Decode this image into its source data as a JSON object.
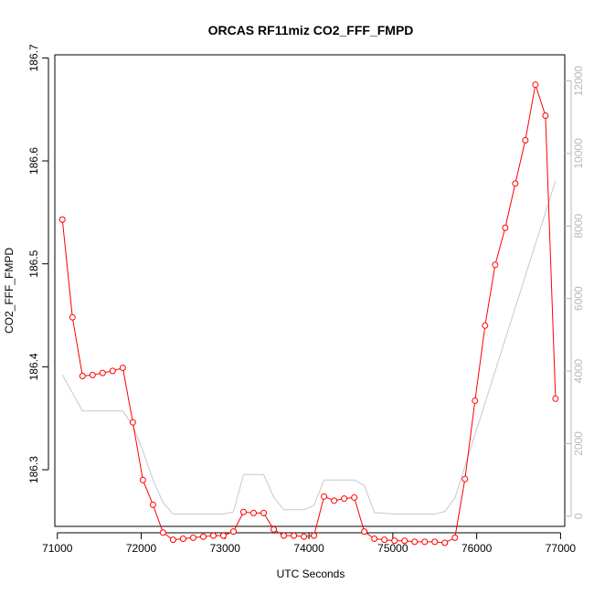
{
  "chart_data": {
    "type": "line",
    "title": "ORCAS RF11miz CO2_FFF_FMPD",
    "xlabel": "UTC Seconds",
    "ylabel": "CO2_FFF_FMPD",
    "xlim": [
      70970,
      77050
    ],
    "ylim": [
      186.245,
      186.703
    ],
    "y2lim": [
      -280,
      12720
    ],
    "x_ticks": [
      71000,
      72000,
      73000,
      74000,
      75000,
      76000,
      77000
    ],
    "y_ticks": [
      186.3,
      186.4,
      186.5,
      186.6,
      186.7
    ],
    "y2_ticks": [
      0,
      2000,
      4000,
      6000,
      8000,
      10000,
      12000
    ],
    "colors": {
      "primary": "#ff0000",
      "secondary": "#c8c8c8"
    },
    "series": [
      {
        "name": "CO2_FFF_FMPD",
        "axis": "left",
        "style": "line+points",
        "x": [
          71060,
          71180,
          71300,
          71420,
          71540,
          71660,
          71780,
          71900,
          72020,
          72140,
          72260,
          72380,
          72500,
          72620,
          72740,
          72860,
          72980,
          73100,
          73220,
          73340,
          73460,
          73580,
          73700,
          73820,
          73940,
          74060,
          74180,
          74300,
          74420,
          74540,
          74660,
          74780,
          74900,
          75020,
          75140,
          75260,
          75380,
          75500,
          75620,
          75740,
          75860,
          75980,
          76100,
          76220,
          76340,
          76460,
          76580,
          76700,
          76820,
          76940
        ],
        "y": [
          186.543,
          186.448,
          186.391,
          186.392,
          186.394,
          186.396,
          186.399,
          186.346,
          186.29,
          186.266,
          186.239,
          186.232,
          186.233,
          186.234,
          186.235,
          186.236,
          186.236,
          186.24,
          186.259,
          186.258,
          186.258,
          186.242,
          186.236,
          186.236,
          186.235,
          186.236,
          186.274,
          186.27,
          186.272,
          186.273,
          186.24,
          186.233,
          186.232,
          186.231,
          186.231,
          186.23,
          186.23,
          186.23,
          186.229,
          186.234,
          186.291,
          186.367,
          186.44,
          186.499,
          186.535,
          186.578,
          186.62,
          186.674,
          186.644,
          186.369
        ]
      },
      {
        "name": "",
        "axis": "right",
        "style": "line",
        "x": [
          71060,
          71300,
          71780,
          71900,
          72020,
          72140,
          72260,
          72380,
          72620,
          72980,
          73100,
          73220,
          73460,
          73580,
          73700,
          73940,
          74060,
          74180,
          74540,
          74660,
          74780,
          75020,
          75500,
          75620,
          75740,
          76940
        ],
        "y": [
          3900,
          2900,
          2900,
          2500,
          1800,
          1000,
          380,
          60,
          60,
          60,
          120,
          1150,
          1150,
          520,
          180,
          180,
          300,
          1000,
          1000,
          850,
          100,
          60,
          60,
          130,
          500,
          9250
        ]
      }
    ]
  }
}
